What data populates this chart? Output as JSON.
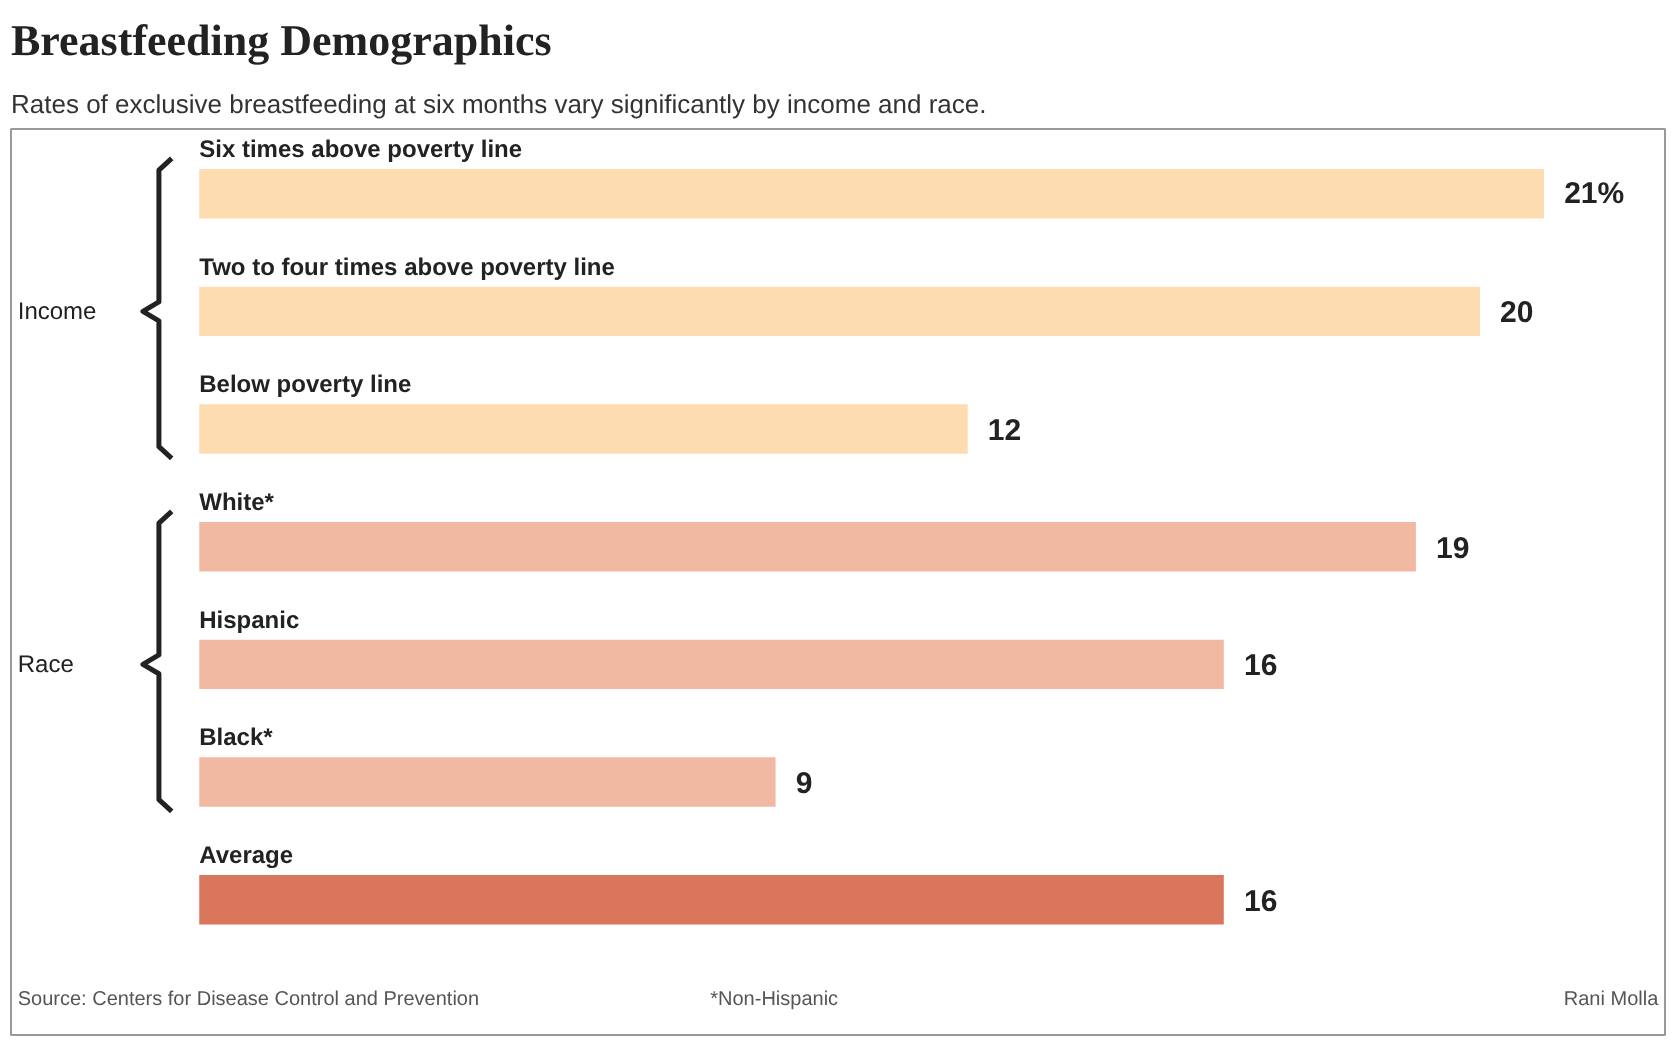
{
  "chart_data": {
    "type": "bar",
    "orientation": "horizontal",
    "title": "Breastfeeding Demographics",
    "subtitle": "Rates of exclusive breastfeeding at six months vary significantly by income and race.",
    "categories": [
      "Six times above poverty line",
      "Two to four times above poverty line",
      "Below poverty line",
      "White*",
      "Hispanic",
      "Black*",
      "Average"
    ],
    "values": [
      21,
      20,
      12,
      19,
      16,
      9,
      16
    ],
    "value_labels": [
      "21%",
      "20",
      "12",
      "19",
      "16",
      "9",
      "16"
    ],
    "colors": [
      "#fddcb0",
      "#fddcb0",
      "#fddcb0",
      "#f2b9a2",
      "#f2b9a2",
      "#f2b9a2",
      "#d9765c"
    ],
    "annotations": [
      "Income",
      "Race",
      "Source: Centers for Disease Control and Prevention",
      "*Non-Hispanic",
      "Rani Molla"
    ]
  }
}
